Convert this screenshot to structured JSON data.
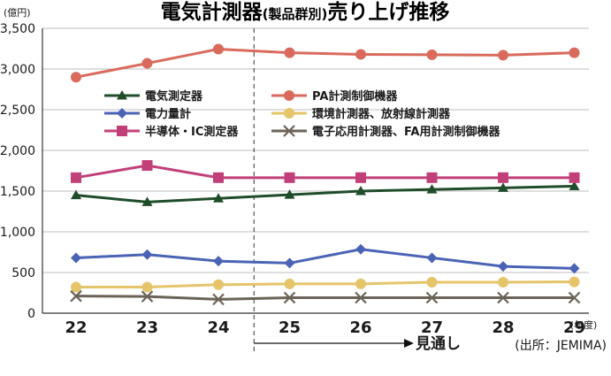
{
  "chart_data": {
    "type": "line",
    "title": "電気計測器",
    "subtitle": "(製品群別)",
    "title_suffix": "売り上げ推移",
    "y_unit": "(億円)",
    "x_unit": "(年度)",
    "source": "(出所：JEMIMA)",
    "forecast_label": "見通し",
    "forecast_start_category": "25",
    "categories": [
      "22",
      "23",
      "24",
      "25",
      "26",
      "27",
      "28",
      "29"
    ],
    "ylim": [
      0,
      3500
    ],
    "yticks": [
      0,
      500,
      1000,
      1500,
      2000,
      2500,
      3000,
      3500
    ],
    "ytick_labels": [
      "0",
      "500",
      "1,000",
      "1,500",
      "2,000",
      "2,500",
      "3,000",
      "3,500"
    ],
    "grid": true,
    "legend_position": "center",
    "series": [
      {
        "name": "電気測定器",
        "marker": "triangle",
        "color": "#1f4d2a",
        "values": [
          1450,
          1365,
          1410,
          1455,
          1500,
          1520,
          1540,
          1560
        ]
      },
      {
        "name": "PA計測制御機器",
        "marker": "circle",
        "color": "#d96a5c",
        "values": [
          2900,
          3070,
          3245,
          3200,
          3180,
          3175,
          3170,
          3200
        ]
      },
      {
        "name": "電力量計",
        "marker": "diamond",
        "color": "#4a63b5",
        "values": [
          680,
          720,
          640,
          615,
          785,
          680,
          575,
          550
        ]
      },
      {
        "name": "環境計測器、放射線計測器",
        "marker": "circle",
        "color": "#e5c46a",
        "values": [
          320,
          320,
          350,
          360,
          360,
          380,
          380,
          385
        ]
      },
      {
        "name": "半導体・IC測定器",
        "marker": "square",
        "color": "#c2407a",
        "values": [
          1665,
          1815,
          1665,
          1665,
          1665,
          1665,
          1665,
          1665
        ]
      },
      {
        "name": "電子応用計測器、FA用計測制御機器",
        "marker": "x",
        "color": "#6b6357",
        "values": [
          210,
          205,
          170,
          190,
          190,
          190,
          190,
          190
        ]
      }
    ]
  }
}
